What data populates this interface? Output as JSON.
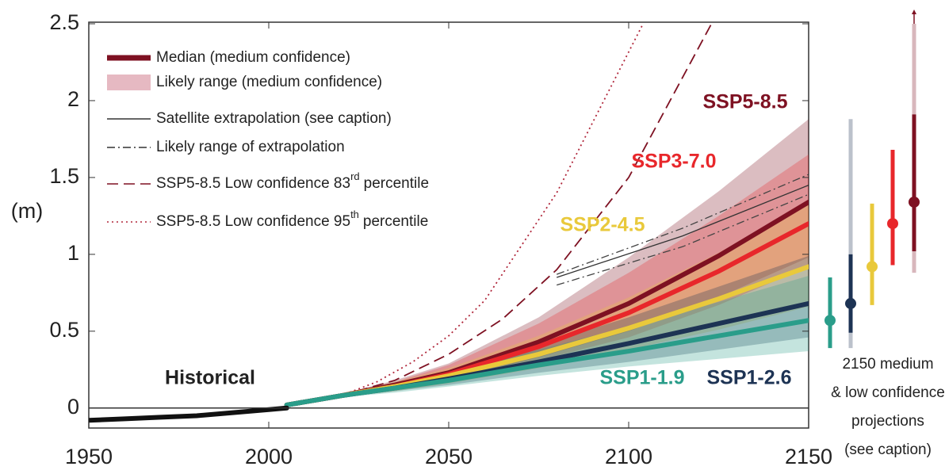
{
  "chart_data": {
    "type": "line",
    "ylabel": "(m)",
    "xlim": [
      1950,
      2150
    ],
    "ylim": [
      -0.13,
      2.5
    ],
    "xticks": [
      1950,
      2000,
      2050,
      2100,
      2150
    ],
    "yticks": [
      0,
      0.5,
      1,
      1.5,
      2,
      2.5
    ],
    "grid": false,
    "historical": {
      "name": "Historical",
      "color": "#111111",
      "x": [
        1950,
        1960,
        1970,
        1980,
        1990,
        2000,
        2005
      ],
      "values": [
        -0.08,
        -0.07,
        -0.06,
        -0.05,
        -0.03,
        -0.01,
        0.0
      ]
    },
    "series": [
      {
        "name": "SSP5-8.5",
        "color": "#7e1122",
        "x": [
          2005,
          2020,
          2035,
          2050,
          2075,
          2100,
          2125,
          2150
        ],
        "values": [
          0.02,
          0.08,
          0.15,
          0.23,
          0.43,
          0.68,
          0.99,
          1.34
        ],
        "low": [
          0.02,
          0.07,
          0.12,
          0.18,
          0.33,
          0.5,
          0.72,
          0.98
        ],
        "high": [
          0.02,
          0.09,
          0.18,
          0.29,
          0.59,
          0.98,
          1.41,
          1.88
        ]
      },
      {
        "name": "SSP3-7.0",
        "color": "#e8272b",
        "x": [
          2005,
          2020,
          2035,
          2050,
          2075,
          2100,
          2125,
          2150
        ],
        "values": [
          0.02,
          0.08,
          0.14,
          0.22,
          0.4,
          0.62,
          0.89,
          1.2
        ],
        "low": [
          0.02,
          0.07,
          0.12,
          0.18,
          0.31,
          0.46,
          0.67,
          0.92
        ],
        "high": [
          0.02,
          0.09,
          0.17,
          0.28,
          0.55,
          0.88,
          1.25,
          1.65
        ]
      },
      {
        "name": "SSP2-4.5",
        "color": "#e9c93b",
        "x": [
          2005,
          2020,
          2035,
          2050,
          2075,
          2100,
          2125,
          2150
        ],
        "values": [
          0.02,
          0.08,
          0.14,
          0.21,
          0.35,
          0.52,
          0.71,
          0.92
        ],
        "low": [
          0.02,
          0.07,
          0.11,
          0.16,
          0.26,
          0.38,
          0.51,
          0.66
        ],
        "high": [
          0.02,
          0.09,
          0.17,
          0.26,
          0.47,
          0.72,
          1.01,
          1.33
        ]
      },
      {
        "name": "SSP1-2.6",
        "color": "#1d3354",
        "x": [
          2005,
          2020,
          2035,
          2050,
          2075,
          2100,
          2125,
          2150
        ],
        "values": [
          0.02,
          0.08,
          0.13,
          0.19,
          0.3,
          0.42,
          0.55,
          0.68
        ],
        "low": [
          0.02,
          0.07,
          0.11,
          0.15,
          0.23,
          0.3,
          0.38,
          0.46
        ],
        "high": [
          0.02,
          0.09,
          0.16,
          0.24,
          0.41,
          0.59,
          0.79,
          0.99
        ]
      },
      {
        "name": "SSP1-1.9",
        "color": "#2a9d8a",
        "x": [
          2005,
          2020,
          2035,
          2050,
          2075,
          2100,
          2125,
          2150
        ],
        "values": [
          0.02,
          0.08,
          0.13,
          0.18,
          0.28,
          0.37,
          0.47,
          0.57
        ],
        "low": [
          0.02,
          0.07,
          0.1,
          0.14,
          0.21,
          0.27,
          0.32,
          0.37
        ],
        "high": [
          0.02,
          0.09,
          0.16,
          0.23,
          0.38,
          0.53,
          0.69,
          0.86
        ]
      }
    ],
    "extrapolation": {
      "x": [
        2080,
        2115,
        2150
      ],
      "satellite": [
        0.85,
        1.12,
        1.45
      ],
      "upper": [
        0.87,
        1.17,
        1.52
      ],
      "lower": [
        0.8,
        1.05,
        1.39
      ]
    },
    "low_confidence_83": {
      "x": [
        2020,
        2035,
        2050,
        2065,
        2080,
        2100,
        2123
      ],
      "values": [
        0.08,
        0.18,
        0.35,
        0.58,
        0.9,
        1.5,
        2.5
      ]
    },
    "low_confidence_95": {
      "x": [
        2020,
        2030,
        2040,
        2050,
        2060,
        2080,
        2104
      ],
      "values": [
        0.08,
        0.17,
        0.3,
        0.47,
        0.7,
        1.4,
        2.5
      ]
    },
    "legend": [
      {
        "label": "Median (medium confidence)"
      },
      {
        "label": "Likely range (medium confidence)"
      },
      {
        "label": "Satellite extrapolation (see caption)"
      },
      {
        "label": "Likely range of extrapolation"
      },
      {
        "label": "SSP5-8.5 Low confidence 83",
        "sup": "rd",
        "label_end": "percentile"
      },
      {
        "label": "SSP5-8.5 Low confidence 95",
        "sup": "th",
        "label_end": "percentile"
      }
    ],
    "panel_2150": {
      "caption": [
        "2150 medium",
        "& low confidence",
        "projections",
        "(see caption)"
      ],
      "bars": [
        {
          "median": 0.57,
          "likely": [
            0.39,
            0.85
          ]
        },
        {
          "median": 0.68,
          "likely": [
            0.49,
            1.0
          ],
          "low_confidence": [
            0.39,
            1.88
          ]
        },
        {
          "median": 0.92,
          "likely": [
            0.67,
            1.33
          ]
        },
        {
          "median": 1.2,
          "likely": [
            0.93,
            1.68
          ]
        },
        {
          "median": 1.34,
          "likely": [
            1.02,
            1.91
          ],
          "low_confidence": [
            0.88,
            2.5
          ]
        }
      ]
    }
  }
}
